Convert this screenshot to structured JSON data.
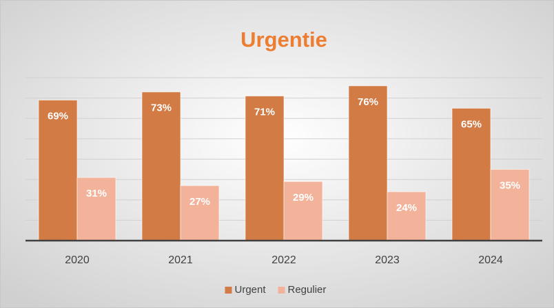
{
  "chart_data": {
    "type": "bar",
    "title": "Urgentie",
    "categories": [
      "2020",
      "2021",
      "2022",
      "2023",
      "2024"
    ],
    "series": [
      {
        "name": "Urgent",
        "color": "#d27b45",
        "values": [
          69,
          73,
          71,
          76,
          65
        ],
        "value_labels": [
          "69%",
          "73%",
          "71%",
          "76%",
          "65%"
        ]
      },
      {
        "name": "Regulier",
        "color": "#f3b39b",
        "values": [
          31,
          27,
          29,
          24,
          35
        ],
        "value_labels": [
          "31%",
          "27%",
          "29%",
          "24%",
          "35%"
        ]
      }
    ],
    "ylim": [
      0,
      80
    ],
    "yticks": [
      0,
      10,
      20,
      30,
      40,
      50,
      60,
      70,
      80
    ],
    "grid": true,
    "legend": "bottom"
  }
}
